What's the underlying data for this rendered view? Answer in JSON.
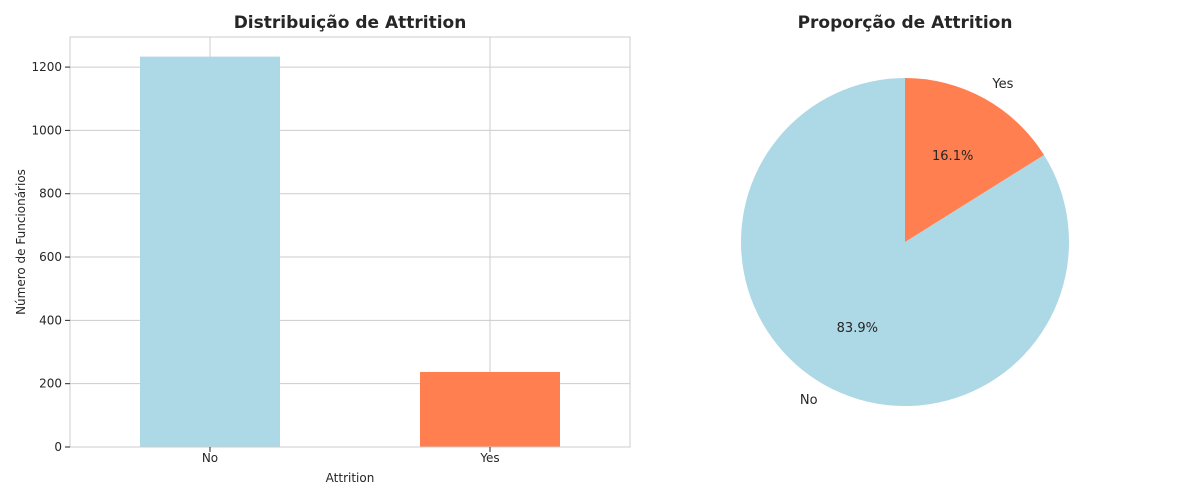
{
  "chart_data": [
    {
      "type": "bar",
      "title": "Distribuição de Attrition",
      "xlabel": "Attrition",
      "ylabel": "Número de Funcionários",
      "categories": [
        "No",
        "Yes"
      ],
      "values": [
        1233,
        237
      ],
      "colors": [
        "#add8e6",
        "#ff7f50"
      ],
      "ylim": [
        0,
        1295
      ],
      "yticks": [
        0,
        200,
        400,
        600,
        800,
        1000,
        1200
      ],
      "grid": true,
      "legend": "none"
    },
    {
      "type": "pie",
      "title": "Proporção de Attrition",
      "labels": [
        "No",
        "Yes"
      ],
      "values": [
        83.9,
        16.1
      ],
      "percent_labels": [
        "83.9%",
        "16.1%"
      ],
      "colors": [
        "#add8e6",
        "#ff7f50"
      ],
      "start_angle_deg": 90,
      "legend": "none"
    }
  ]
}
